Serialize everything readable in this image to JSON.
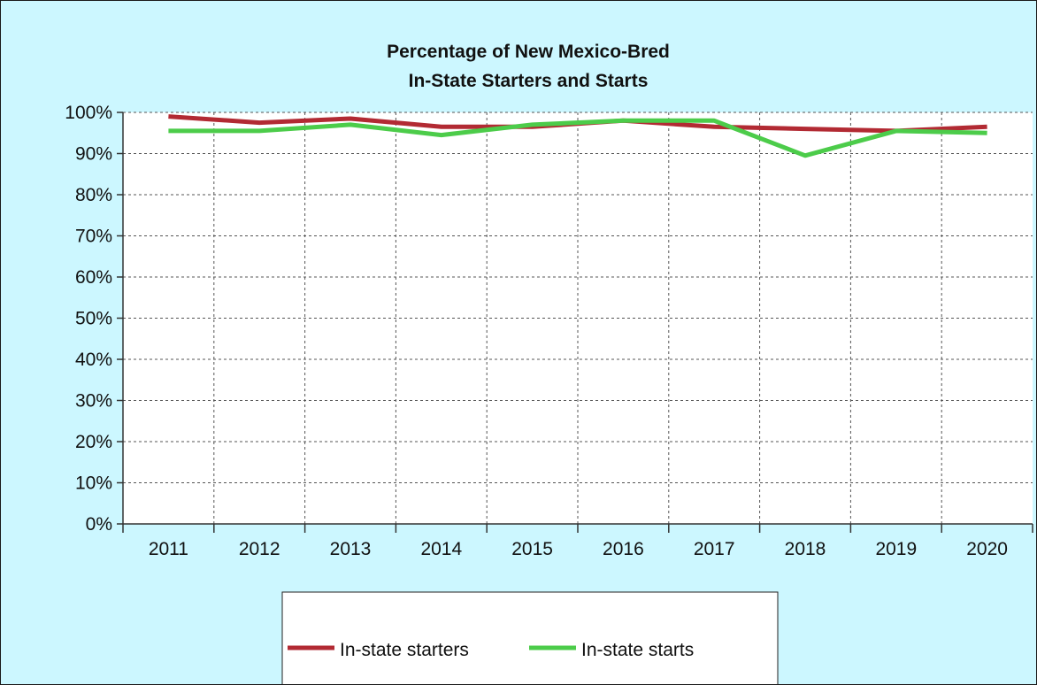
{
  "chart_data": {
    "type": "line",
    "title": [
      "Percentage of New Mexico-Bred",
      "In-State Starters and Starts"
    ],
    "xlabel": "",
    "ylabel": "",
    "categories": [
      "2011",
      "2012",
      "2013",
      "2014",
      "2015",
      "2016",
      "2017",
      "2018",
      "2019",
      "2020"
    ],
    "ylim": [
      0,
      100
    ],
    "yticks": [
      0,
      10,
      20,
      30,
      40,
      50,
      60,
      70,
      80,
      90,
      100
    ],
    "ytick_labels": [
      "0%",
      "10%",
      "20%",
      "30%",
      "40%",
      "50%",
      "60%",
      "70%",
      "80%",
      "90%",
      "100%"
    ],
    "grid": true,
    "legend_position": "bottom-center",
    "series": [
      {
        "name": "In-state starters",
        "color": "#b22a33",
        "values": [
          99,
          97.5,
          98.5,
          96.5,
          96.5,
          98,
          96.5,
          96,
          95.5,
          96.5
        ]
      },
      {
        "name": "In-state starts",
        "color": "#4ccc4a",
        "values": [
          95.5,
          95.5,
          97,
          94.5,
          97,
          98,
          98,
          89.5,
          95.5,
          95
        ]
      }
    ],
    "colors": {
      "background": "#ccf7ff",
      "plot_area": "#ffffff"
    }
  }
}
